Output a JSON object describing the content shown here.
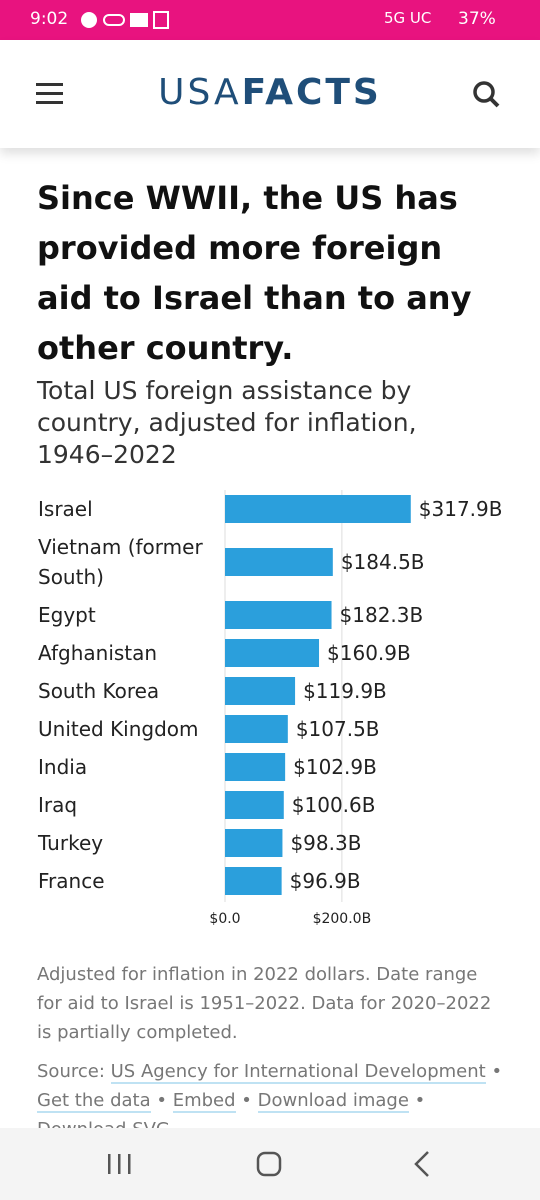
{
  "status_bar": {
    "time": "9:02",
    "network": "5G UC",
    "battery": "37%"
  },
  "header": {
    "logo_light": "USA",
    "logo_bold": "FACTS"
  },
  "chart_data": {
    "type": "bar",
    "orientation": "horizontal",
    "title": "Since WWII, the US has provided more foreign aid to Israel than to any other country.",
    "subtitle": "Total US foreign assistance by country, adjusted for inflation, 1946–2022",
    "categories": [
      "Israel",
      "Vietnam (former South)",
      "Egypt",
      "Afghanistan",
      "South Korea",
      "United Kingdom",
      "India",
      "Iraq",
      "Turkey",
      "France"
    ],
    "values": [
      317.9,
      184.5,
      182.3,
      160.9,
      119.9,
      107.5,
      102.9,
      100.6,
      98.3,
      96.9
    ],
    "value_labels": [
      "$317.9B",
      "$184.5B",
      "$182.3B",
      "$160.9B",
      "$119.9B",
      "$107.5B",
      "$102.9B",
      "$100.6B",
      "$98.3B",
      "$96.9B"
    ],
    "color": "#2b9fdc",
    "xlim": [
      0,
      320
    ],
    "xticks": [
      {
        "value": 0,
        "label": "$0.0"
      },
      {
        "value": 200,
        "label": "$200.0B"
      }
    ],
    "grid": true,
    "note": "Adjusted for inflation in 2022 dollars. Date range for aid to Israel is 1951–2022. Data for 2020–2022 is partially completed."
  },
  "source": {
    "label": "Source:",
    "separator": "•",
    "links": [
      "US Agency for International Development",
      "Get the data",
      "Embed",
      "Download image",
      "Download SVG"
    ]
  }
}
